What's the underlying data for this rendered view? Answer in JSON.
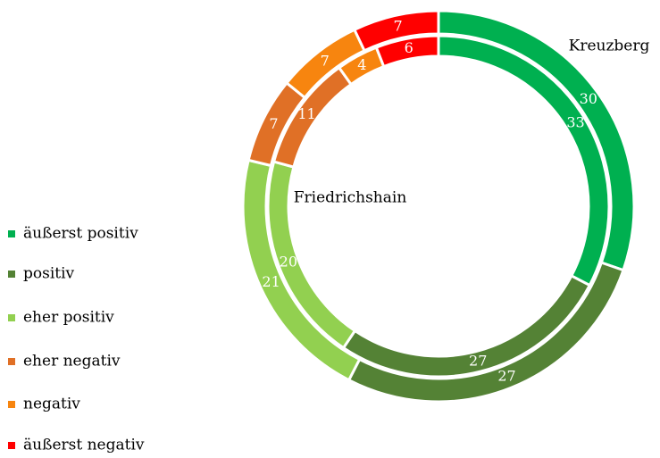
{
  "chart_data": {
    "type": "donut",
    "categories": [
      "äußerst positiv",
      "positiv",
      "eher positiv",
      "eher negativ",
      "negativ",
      "äußerst negativ"
    ],
    "colors": [
      "#00b050",
      "#548235",
      "#92d050",
      "#e07026",
      "#f7850f",
      "#ff0000"
    ],
    "series": [
      {
        "name": "Kreuzberg",
        "values": [
          30,
          27,
          21,
          7,
          7,
          7
        ]
      },
      {
        "name": "Friedrichshain",
        "values": [
          33,
          27,
          20,
          11,
          4,
          6
        ]
      }
    ]
  }
}
